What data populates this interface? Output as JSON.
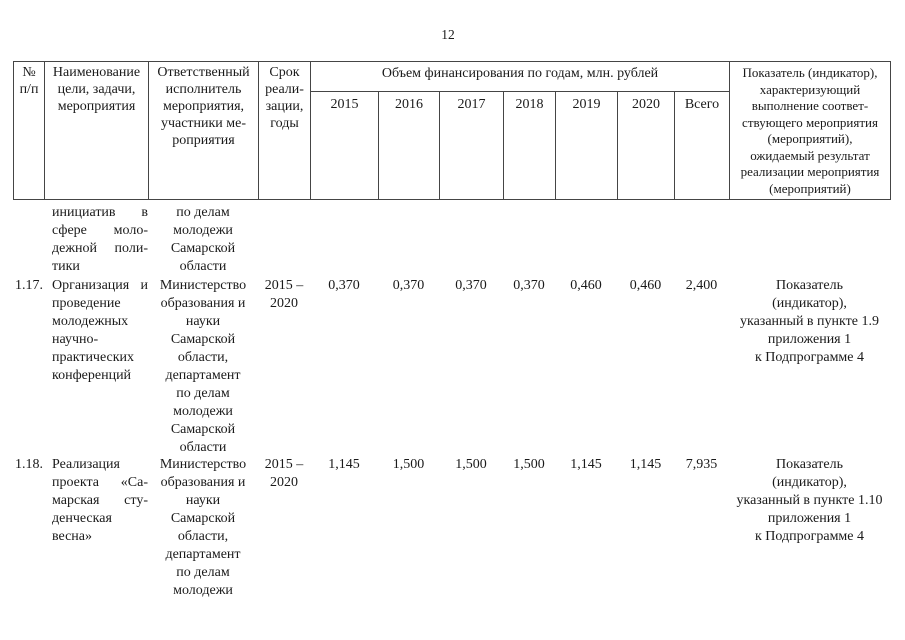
{
  "page": {
    "number": "12"
  },
  "table": {
    "header": {
      "num": [
        "№",
        "п/п"
      ],
      "name": [
        "Наименование",
        "цели, задачи,",
        "мероприятия"
      ],
      "executor": [
        "Ответственный",
        "исполнитель",
        "мероприятия,",
        "участники ме-",
        "роприятия"
      ],
      "term": [
        "Срок",
        "реали-",
        "зации,",
        "годы"
      ],
      "financing_title": "Объем финансирования по годам, млн. рублей",
      "years": [
        "2015",
        "2016",
        "2017",
        "2018",
        "2019",
        "2020",
        "Всего"
      ],
      "indicator": [
        "Показатель (индикатор),",
        "характеризующий",
        "выполнение соответ-",
        "ствующего мероприятия",
        "(мероприятий),",
        "ожидаемый результат",
        "реализации мероприятия",
        "(мероприятий)"
      ]
    },
    "rows": [
      {
        "num": "",
        "name": [
          "инициатив в",
          "сфере моло-",
          "дежной поли-",
          "тики"
        ],
        "executor": [
          "по делам",
          "молодежи",
          "Самарской",
          "области"
        ],
        "term": [],
        "values": [
          "",
          "",
          "",
          "",
          "",
          "",
          ""
        ],
        "indicator": []
      },
      {
        "num": "1.17.",
        "name": [
          "Организация и",
          "проведение",
          "молодежных",
          "научно-",
          "практических",
          "конференций"
        ],
        "executor": [
          "Министерство",
          "образования и",
          "науки",
          "Самарской",
          "области,",
          "департамент",
          "по делам",
          "молодежи",
          "Самарской",
          "области"
        ],
        "term": [
          "2015 –",
          "2020"
        ],
        "values": [
          "0,370",
          "0,370",
          "0,370",
          "0,370",
          "0,460",
          "0,460",
          "2,400"
        ],
        "indicator": [
          "Показатель",
          "(индикатор),",
          "указанный в пункте 1.9",
          "приложения 1",
          "к Подпрограмме 4"
        ]
      },
      {
        "num": "1.18.",
        "name": [
          "Реализация",
          "проекта «Са-",
          "марская сту-",
          "денческая",
          "весна»"
        ],
        "executor": [
          "Министерство",
          "образования и",
          "науки",
          "Самарской",
          "области,",
          "департамент",
          "по делам",
          "молодежи"
        ],
        "term": [
          "2015 –",
          "2020"
        ],
        "values": [
          "1,145",
          "1,500",
          "1,500",
          "1,500",
          "1,145",
          "1,145",
          "7,935"
        ],
        "indicator": [
          "Показатель",
          "(индикатор),",
          "указанный в пункте 1.10",
          "приложения 1",
          "к Подпрограмме 4"
        ]
      }
    ]
  }
}
